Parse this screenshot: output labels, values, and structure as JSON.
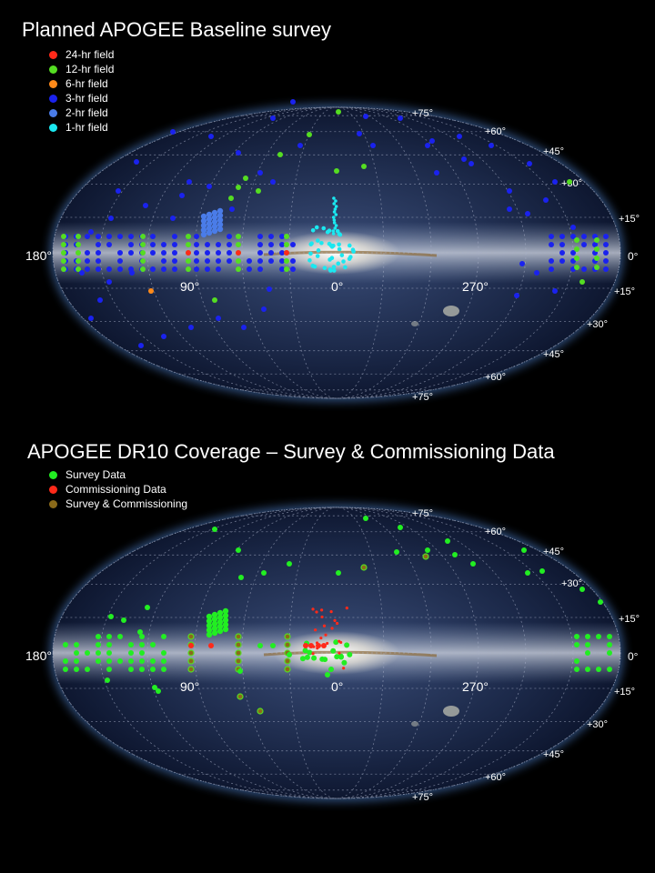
{
  "colors": {
    "red": "#ff2a1a",
    "green": "#55dd22",
    "orange": "#ff8a1a",
    "blue": "#1a22ee",
    "lightblue": "#4a7ce8",
    "cyan": "#1ae8f0",
    "survey_green": "#22ee22",
    "olive": "#8b6a1a"
  },
  "labels": {
    "lon": [
      "180°",
      "90°",
      "0°",
      "270°",
      "0°"
    ],
    "lat_upper": [
      "+75°",
      "+60°",
      "+45°",
      "+30°",
      "+15°"
    ],
    "lat_lower": [
      "+15°",
      "+30°",
      "+45°",
      "+60°",
      "+75°"
    ]
  },
  "panels": [
    {
      "title": "Planned APOGEE Baseline survey",
      "legend": [
        {
          "label": "24-hr field",
          "color": "#ff2a1a"
        },
        {
          "label": "12-hr field",
          "color": "#55dd22"
        },
        {
          "label": "6-hr field",
          "color": "#ff8a1a"
        },
        {
          "label": "3-hr field",
          "color": "#1a22ee"
        },
        {
          "label": "2-hr field",
          "color": "#4a7ce8"
        },
        {
          "label": "1-hr field",
          "color": "#1ae8f0"
        }
      ]
    },
    {
      "title": "APOGEE DR10 Coverage – Survey & Commissioning Data",
      "legend": [
        {
          "label": "Survey Data",
          "color": "#22ee22"
        },
        {
          "label": "Commissioning Data",
          "color": "#ff2a1a"
        },
        {
          "label": "Survey & Commissioning",
          "color": "#8b6a1a"
        }
      ]
    }
  ]
}
